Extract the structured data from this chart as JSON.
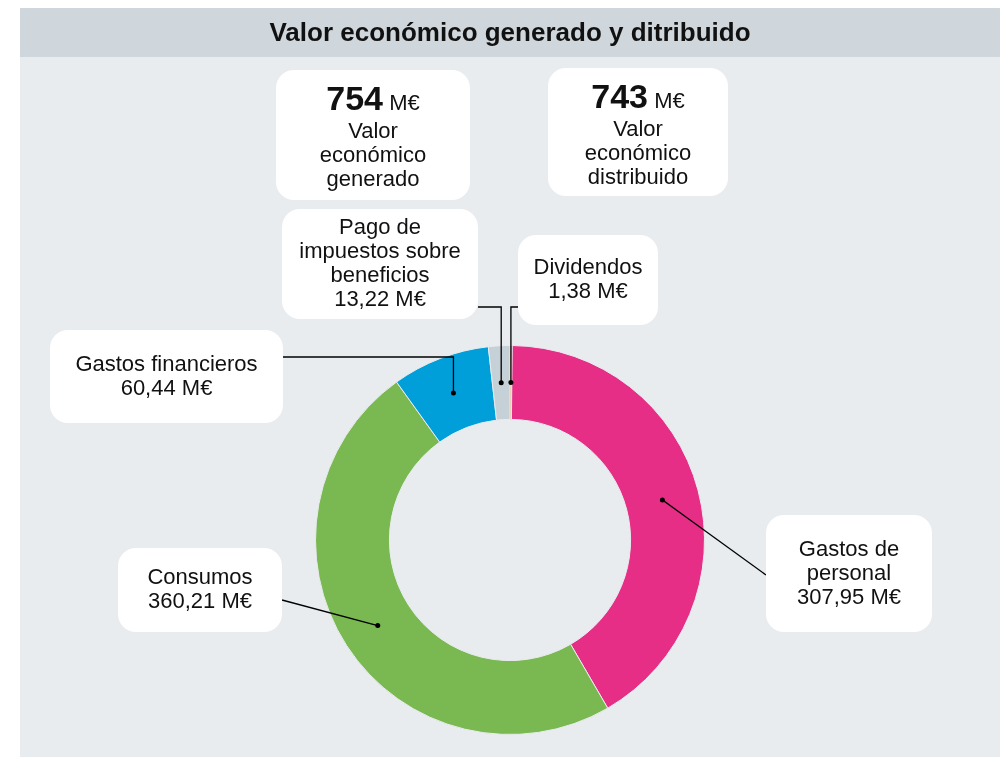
{
  "chart_data": {
    "type": "donut",
    "title": "Valor económico generado y ditribuido",
    "categories": [
      "Dividendos",
      "Gastos de personal",
      "Consumos",
      "Gastos financieros",
      "Pago de impuestos sobre beneficios"
    ],
    "values": [
      1.38,
      307.95,
      360.21,
      60.44,
      13.22
    ],
    "value_labels": [
      "1,38 M€",
      "307,95 M€",
      "360,21 M€",
      "60,44 M€",
      "13,22 M€"
    ],
    "colors": [
      "#f07f1e",
      "#e62e87",
      "#7ab851",
      "#009fda",
      "#c5d0d7"
    ],
    "annotations": [
      "754 M€",
      "Valor económico generado",
      "743 M€",
      "Valor económico distribuido"
    ]
  }
}
